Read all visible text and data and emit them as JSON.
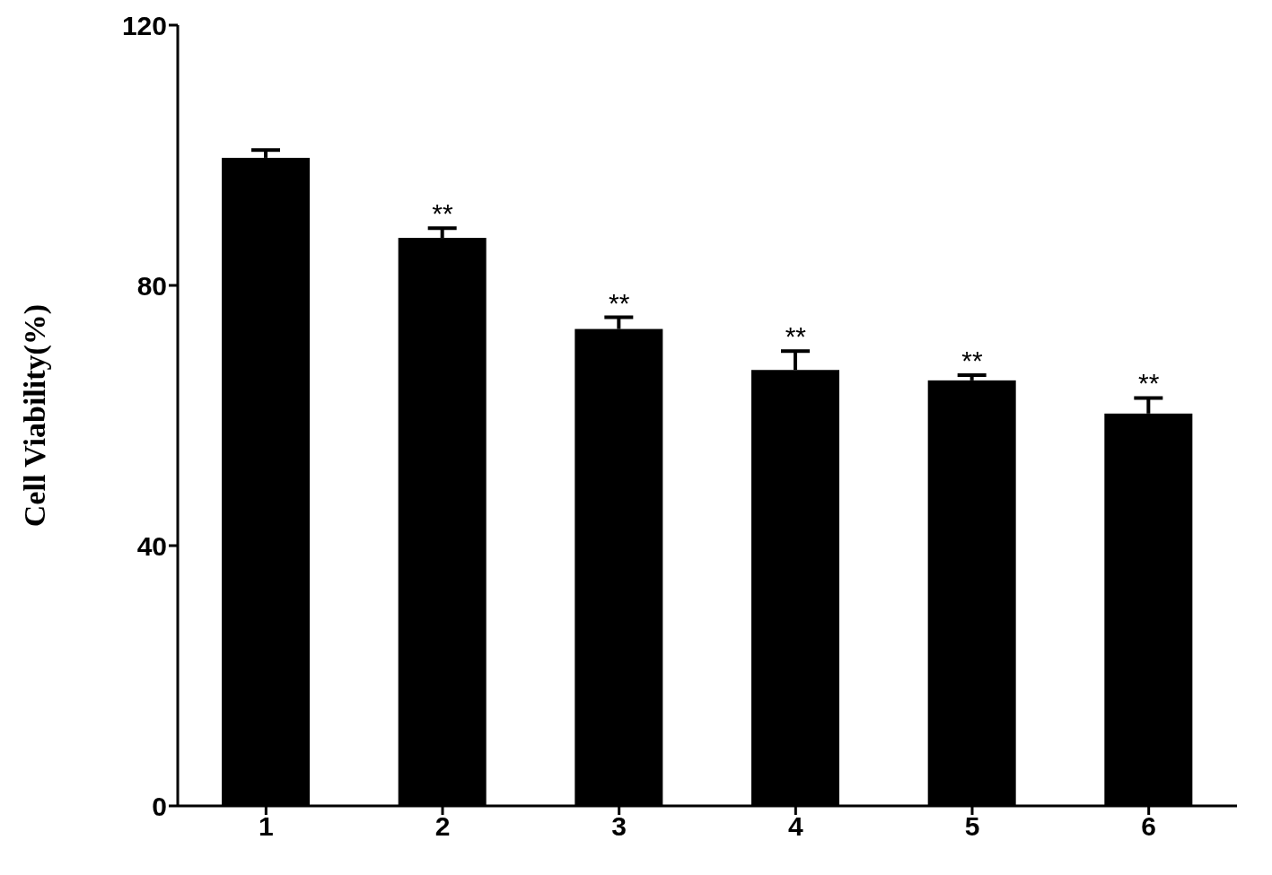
{
  "chart_data": {
    "type": "bar",
    "ylabel": "Cell Viability(%)",
    "categories": [
      "1",
      "2",
      "3",
      "4",
      "5",
      "6"
    ],
    "values": [
      99.6,
      87.3,
      73.3,
      67.0,
      65.4,
      60.3
    ],
    "errors": [
      [
        99.6,
        100.8
      ],
      [
        87.3,
        88.8
      ],
      [
        73.3,
        75.1
      ],
      [
        67.0,
        69.9
      ],
      [
        65.4,
        66.2
      ],
      [
        60.3,
        62.7
      ]
    ],
    "color": "#000000",
    "ylim": [
      0,
      120
    ],
    "yticks": [
      0,
      40,
      80,
      120
    ],
    "grid": false,
    "legend": false,
    "annotations": [
      {
        "text": "**",
        "x": "2",
        "y": 88.8
      },
      {
        "text": "**",
        "x": "3",
        "y": 75.1
      },
      {
        "text": "**",
        "x": "4",
        "y": 69.9
      },
      {
        "text": "**",
        "x": "5",
        "y": 66.2
      },
      {
        "text": "**",
        "x": "6",
        "y": 62.7
      }
    ]
  }
}
